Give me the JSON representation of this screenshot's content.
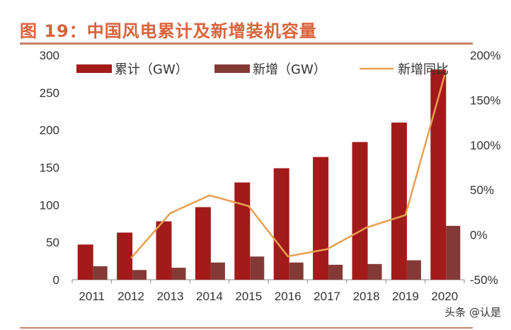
{
  "title": "图 19：中国风电累计及新增装机容量",
  "watermark": "头条 @认是",
  "chart_data": {
    "type": "bar",
    "categories": [
      "2011",
      "2012",
      "2013",
      "2014",
      "2015",
      "2016",
      "2017",
      "2018",
      "2019",
      "2020"
    ],
    "series": [
      {
        "name": "累计（GW）",
        "kind": "bar",
        "axis": "left",
        "color": "#a31a1a",
        "values": [
          47,
          63,
          78,
          97,
          130,
          149,
          164,
          184,
          210,
          281
        ]
      },
      {
        "name": "新增（GW）",
        "kind": "bar",
        "axis": "left",
        "color": "#833a36",
        "values": [
          18,
          13,
          16,
          23,
          31,
          23,
          20,
          21,
          26,
          72
        ]
      },
      {
        "name": "新增同比",
        "kind": "line",
        "axis": "right",
        "color": "#e8a050",
        "values": [
          null,
          -26,
          24,
          44,
          32,
          -24,
          -16,
          8,
          22,
          178
        ]
      }
    ],
    "ylim_left": [
      0,
      300
    ],
    "yticks_left": [
      "0",
      "50",
      "100",
      "150",
      "200",
      "250",
      "300"
    ],
    "ylim_right": [
      -50,
      200
    ],
    "yticks_right": [
      "-50%",
      "0%",
      "50%",
      "100%",
      "150%",
      "200%"
    ],
    "legend": "top",
    "grid": false
  }
}
